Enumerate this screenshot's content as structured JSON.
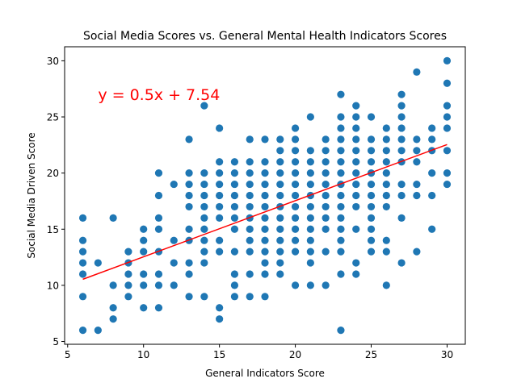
{
  "chart_data": {
    "type": "scatter",
    "title": "Social Media Scores vs. General Mental Health Indicators Scores",
    "xlabel": "General Indicators Score",
    "ylabel": "Social Media Driven Score",
    "xlim": [
      4.8,
      31.2
    ],
    "ylim": [
      4.75,
      31.25
    ],
    "xticks": [
      5,
      10,
      15,
      20,
      25,
      30
    ],
    "yticks": [
      5,
      10,
      15,
      20,
      25,
      30
    ],
    "grid": false,
    "colors": {
      "points": "#1f77b4",
      "regression": "#ff0000"
    },
    "regression": {
      "slope": 0.5,
      "intercept": 7.54,
      "x_range": [
        6,
        30
      ],
      "equation_label": "y = 0.5x + 7.54",
      "label_position": [
        7,
        27
      ]
    },
    "points": [
      [
        6,
        6
      ],
      [
        6,
        9
      ],
      [
        6,
        11
      ],
      [
        6,
        12
      ],
      [
        6,
        13
      ],
      [
        6,
        14
      ],
      [
        6,
        16
      ],
      [
        7,
        6
      ],
      [
        7,
        12
      ],
      [
        8,
        7
      ],
      [
        8,
        8
      ],
      [
        8,
        10
      ],
      [
        8,
        16
      ],
      [
        9,
        9
      ],
      [
        9,
        10
      ],
      [
        9,
        11
      ],
      [
        9,
        12
      ],
      [
        9,
        13
      ],
      [
        10,
        8
      ],
      [
        10,
        10
      ],
      [
        10,
        11
      ],
      [
        10,
        13
      ],
      [
        10,
        14
      ],
      [
        10,
        15
      ],
      [
        11,
        8
      ],
      [
        11,
        10
      ],
      [
        11,
        11
      ],
      [
        11,
        13
      ],
      [
        11,
        15
      ],
      [
        11,
        16
      ],
      [
        11,
        18
      ],
      [
        11,
        20
      ],
      [
        12,
        10
      ],
      [
        12,
        12
      ],
      [
        12,
        14
      ],
      [
        12,
        19
      ],
      [
        13,
        9
      ],
      [
        13,
        11
      ],
      [
        13,
        12
      ],
      [
        13,
        14
      ],
      [
        13,
        15
      ],
      [
        13,
        17
      ],
      [
        13,
        18
      ],
      [
        13,
        19
      ],
      [
        13,
        20
      ],
      [
        13,
        23
      ],
      [
        14,
        9
      ],
      [
        14,
        12
      ],
      [
        14,
        13
      ],
      [
        14,
        14
      ],
      [
        14,
        15
      ],
      [
        14,
        16
      ],
      [
        14,
        17
      ],
      [
        14,
        18
      ],
      [
        14,
        19
      ],
      [
        14,
        20
      ],
      [
        14,
        26
      ],
      [
        15,
        7
      ],
      [
        15,
        8
      ],
      [
        15,
        13
      ],
      [
        15,
        14
      ],
      [
        15,
        16
      ],
      [
        15,
        17
      ],
      [
        15,
        18
      ],
      [
        15,
        19
      ],
      [
        15,
        20
      ],
      [
        15,
        21
      ],
      [
        15,
        24
      ],
      [
        16,
        9
      ],
      [
        16,
        10
      ],
      [
        16,
        11
      ],
      [
        16,
        13
      ],
      [
        16,
        15
      ],
      [
        16,
        16
      ],
      [
        16,
        17
      ],
      [
        16,
        18
      ],
      [
        16,
        19
      ],
      [
        16,
        20
      ],
      [
        16,
        21
      ],
      [
        17,
        9
      ],
      [
        17,
        11
      ],
      [
        17,
        13
      ],
      [
        17,
        14
      ],
      [
        17,
        15
      ],
      [
        17,
        16
      ],
      [
        17,
        17
      ],
      [
        17,
        18
      ],
      [
        17,
        19
      ],
      [
        17,
        20
      ],
      [
        17,
        21
      ],
      [
        17,
        23
      ],
      [
        18,
        9
      ],
      [
        18,
        11
      ],
      [
        18,
        12
      ],
      [
        18,
        13
      ],
      [
        18,
        14
      ],
      [
        18,
        15
      ],
      [
        18,
        16
      ],
      [
        18,
        17
      ],
      [
        18,
        18
      ],
      [
        18,
        19
      ],
      [
        18,
        20
      ],
      [
        18,
        21
      ],
      [
        18,
        23
      ],
      [
        19,
        11
      ],
      [
        19,
        12
      ],
      [
        19,
        13
      ],
      [
        19,
        14
      ],
      [
        19,
        15
      ],
      [
        19,
        16
      ],
      [
        19,
        17
      ],
      [
        19,
        18
      ],
      [
        19,
        19
      ],
      [
        19,
        20
      ],
      [
        19,
        21
      ],
      [
        19,
        22
      ],
      [
        19,
        23
      ],
      [
        20,
        10
      ],
      [
        20,
        13
      ],
      [
        20,
        14
      ],
      [
        20,
        15
      ],
      [
        20,
        16
      ],
      [
        20,
        17
      ],
      [
        20,
        18
      ],
      [
        20,
        19
      ],
      [
        20,
        20
      ],
      [
        20,
        21
      ],
      [
        20,
        22
      ],
      [
        20,
        23
      ],
      [
        20,
        24
      ],
      [
        21,
        10
      ],
      [
        21,
        12
      ],
      [
        21,
        13
      ],
      [
        21,
        14
      ],
      [
        21,
        15
      ],
      [
        21,
        16
      ],
      [
        21,
        17
      ],
      [
        21,
        18
      ],
      [
        21,
        19
      ],
      [
        21,
        20
      ],
      [
        21,
        21
      ],
      [
        21,
        22
      ],
      [
        21,
        25
      ],
      [
        22,
        10
      ],
      [
        22,
        13
      ],
      [
        22,
        15
      ],
      [
        22,
        16
      ],
      [
        22,
        17
      ],
      [
        22,
        18
      ],
      [
        22,
        19
      ],
      [
        22,
        20
      ],
      [
        22,
        21
      ],
      [
        22,
        22
      ],
      [
        22,
        23
      ],
      [
        23,
        6
      ],
      [
        23,
        11
      ],
      [
        23,
        13
      ],
      [
        23,
        14
      ],
      [
        23,
        15
      ],
      [
        23,
        16
      ],
      [
        23,
        17
      ],
      [
        23,
        18
      ],
      [
        23,
        19
      ],
      [
        23,
        20
      ],
      [
        23,
        21
      ],
      [
        23,
        22
      ],
      [
        23,
        23
      ],
      [
        23,
        24
      ],
      [
        23,
        25
      ],
      [
        23,
        27
      ],
      [
        24,
        11
      ],
      [
        24,
        12
      ],
      [
        24,
        15
      ],
      [
        24,
        17
      ],
      [
        24,
        18
      ],
      [
        24,
        19
      ],
      [
        24,
        20
      ],
      [
        24,
        21
      ],
      [
        24,
        22
      ],
      [
        24,
        23
      ],
      [
        24,
        24
      ],
      [
        24,
        25
      ],
      [
        24,
        26
      ],
      [
        25,
        13
      ],
      [
        25,
        14
      ],
      [
        25,
        15
      ],
      [
        25,
        16
      ],
      [
        25,
        17
      ],
      [
        25,
        18
      ],
      [
        25,
        19
      ],
      [
        25,
        20
      ],
      [
        25,
        21
      ],
      [
        25,
        22
      ],
      [
        25,
        23
      ],
      [
        25,
        25
      ],
      [
        26,
        10
      ],
      [
        26,
        13
      ],
      [
        26,
        14
      ],
      [
        26,
        17
      ],
      [
        26,
        18
      ],
      [
        26,
        19
      ],
      [
        26,
        20
      ],
      [
        26,
        21
      ],
      [
        26,
        22
      ],
      [
        26,
        23
      ],
      [
        26,
        24
      ],
      [
        27,
        12
      ],
      [
        27,
        16
      ],
      [
        27,
        18
      ],
      [
        27,
        19
      ],
      [
        27,
        21
      ],
      [
        27,
        22
      ],
      [
        27,
        23
      ],
      [
        27,
        24
      ],
      [
        27,
        25
      ],
      [
        27,
        26
      ],
      [
        27,
        27
      ],
      [
        28,
        13
      ],
      [
        28,
        18
      ],
      [
        28,
        19
      ],
      [
        28,
        21
      ],
      [
        28,
        22
      ],
      [
        28,
        23
      ],
      [
        28,
        29
      ],
      [
        29,
        15
      ],
      [
        29,
        18
      ],
      [
        29,
        20
      ],
      [
        29,
        22
      ],
      [
        29,
        23
      ],
      [
        29,
        24
      ],
      [
        30,
        19
      ],
      [
        30,
        20
      ],
      [
        30,
        22
      ],
      [
        30,
        24
      ],
      [
        30,
        25
      ],
      [
        30,
        26
      ],
      [
        30,
        28
      ],
      [
        30,
        30
      ]
    ]
  }
}
